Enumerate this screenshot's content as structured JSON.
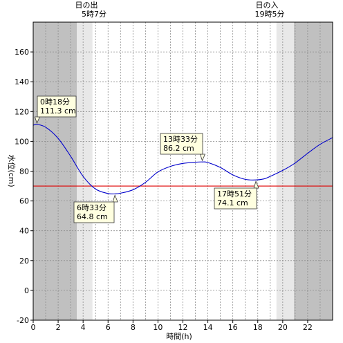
{
  "chart_data": {
    "type": "line",
    "xlabel": "時間(h)",
    "ylabel": "水位(cm)",
    "xlim": [
      0,
      24
    ],
    "ylim": [
      -20,
      180
    ],
    "x_ticks": [
      0,
      2,
      4,
      6,
      8,
      10,
      12,
      14,
      16,
      18,
      20,
      22
    ],
    "y_ticks": [
      -20,
      0,
      20,
      40,
      60,
      80,
      100,
      120,
      140,
      160
    ],
    "x_tick_labels": [
      "0",
      "2",
      "4",
      "6",
      "8",
      "10",
      "12",
      "14",
      "16",
      "18",
      "20",
      "22"
    ],
    "y_tick_labels": [
      "-20",
      "0",
      "20",
      "40",
      "60",
      "80",
      "100",
      "120",
      "140",
      "160"
    ],
    "reference_line": {
      "y": 70,
      "color": "#e00000"
    },
    "series": [
      {
        "color": "#0000cc",
        "x": [
          0,
          0.3,
          1,
          2,
          3,
          4,
          5,
          6,
          6.55,
          7,
          8,
          9,
          10,
          11,
          12,
          13,
          13.55,
          14,
          15,
          16,
          17,
          17.85,
          18.5,
          19,
          20,
          21,
          22,
          23,
          24
        ],
        "y": [
          110.8,
          111.3,
          109.5,
          102,
          90,
          76.5,
          68,
          65,
          64.8,
          65.2,
          67.5,
          72.5,
          79.5,
          83.2,
          85.2,
          86,
          86.2,
          85.8,
          82.5,
          77.5,
          74.5,
          74.1,
          74.8,
          76.5,
          80.5,
          85.5,
          92,
          98,
          102.5
        ]
      }
    ],
    "day_shading": {
      "night_color": "#c0c0c0",
      "twilight_color": "#e8e8e8",
      "night": [
        [
          0,
          3.5
        ],
        [
          20.9,
          24
        ]
      ],
      "twilight": [
        [
          3.5,
          4.75
        ],
        [
          19.5,
          20.9
        ]
      ]
    },
    "annotations": [
      {
        "id": "high1",
        "line1": "0時18分",
        "line2": "111.3 cm",
        "x": 0.3,
        "y": 111.3
      },
      {
        "id": "low1",
        "line1": "6時33分",
        "line2": "64.8 cm",
        "x": 6.55,
        "y": 64.8
      },
      {
        "id": "high2",
        "line1": "13時33分",
        "line2": "86.2 cm",
        "x": 13.55,
        "y": 86.2
      },
      {
        "id": "low2",
        "line1": "17時51分",
        "line2": "74.1 cm",
        "x": 17.85,
        "y": 74.1
      }
    ],
    "sun": {
      "rise_label": "日の出",
      "rise_time": "5時7分",
      "set_label": "日の入",
      "set_time": "19時5分"
    }
  }
}
